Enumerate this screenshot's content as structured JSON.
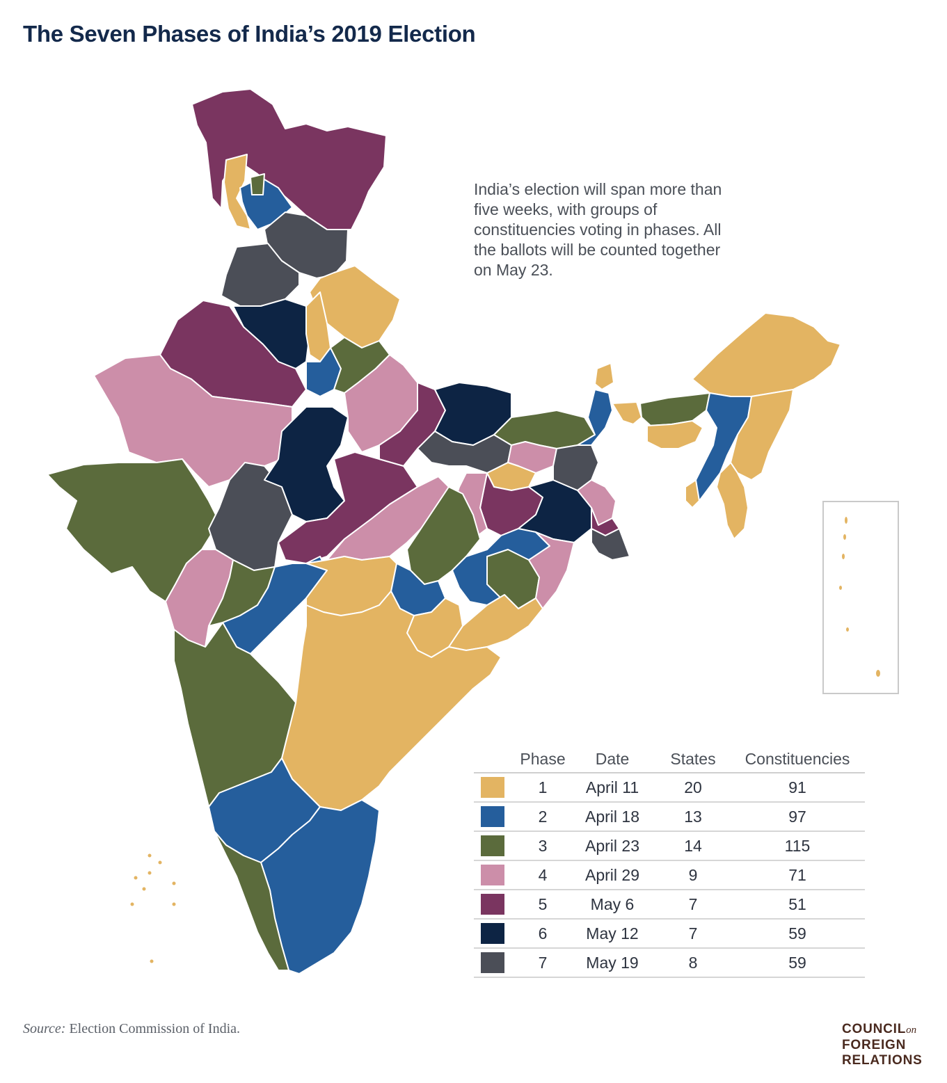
{
  "title": "The Seven Phases of India’s 2019 Election",
  "description": "India’s election will span more than five weeks, with groups of constituencies voting in phases. All the ballots will be counted together on May 23.",
  "colors": {
    "phase1": "#e3b462",
    "phase2": "#255e9c",
    "phase3": "#5b6b3c",
    "phase4": "#cc8ea9",
    "phase5": "#7a3560",
    "phase6": "#0d2444",
    "phase7": "#4b4e57",
    "title": "#13294b",
    "border": "#ffffff"
  },
  "legend": {
    "headers": {
      "phase": "Phase",
      "date": "Date",
      "states": "States",
      "constituencies": "Constituencies"
    },
    "rows": [
      {
        "phase": "1",
        "date": "April 11",
        "states": "20",
        "constituencies": "91",
        "color": "#e3b462"
      },
      {
        "phase": "2",
        "date": "April 18",
        "states": "13",
        "constituencies": "97",
        "color": "#255e9c"
      },
      {
        "phase": "3",
        "date": "April 23",
        "states": "14",
        "constituencies": "115",
        "color": "#5b6b3c"
      },
      {
        "phase": "4",
        "date": "April 29",
        "states": "9",
        "constituencies": "71",
        "color": "#cc8ea9"
      },
      {
        "phase": "5",
        "date": "May 6",
        "states": "7",
        "constituencies": "51",
        "color": "#7a3560"
      },
      {
        "phase": "6",
        "date": "May 12",
        "states": "7",
        "constituencies": "59",
        "color": "#0d2444"
      },
      {
        "phase": "7",
        "date": "May 19",
        "states": "8",
        "constituencies": "59",
        "color": "#4b4e57"
      }
    ]
  },
  "source": {
    "label": "Source:",
    "text": " Election Commission of India."
  },
  "logo": {
    "line1": "COUNCIL",
    "on": "on",
    "line2": "FOREIGN",
    "line3": "RELATIONS"
  }
}
